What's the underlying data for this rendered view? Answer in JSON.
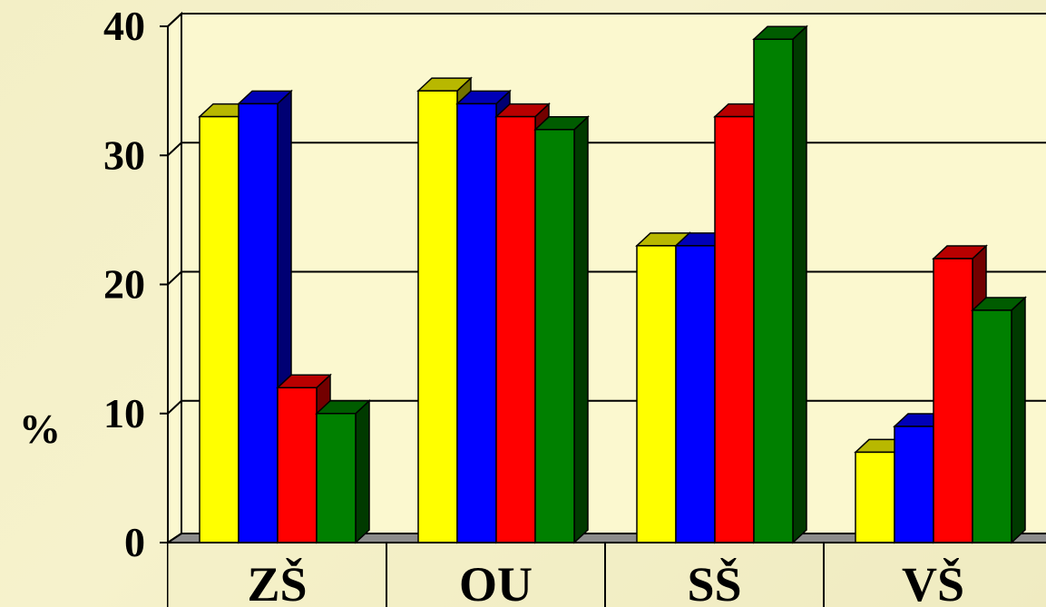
{
  "chart_data": {
    "type": "bar",
    "categories": [
      "ZŠ",
      "OU",
      "SŠ",
      "VŠ"
    ],
    "series": [
      {
        "values": [
          33,
          35,
          23,
          7
        ]
      },
      {
        "values": [
          34,
          34,
          23,
          9
        ]
      },
      {
        "values": [
          12,
          33,
          33,
          22
        ]
      },
      {
        "values": [
          10,
          32,
          39,
          18
        ]
      }
    ],
    "series_colors": [
      "#ffff00",
      "#0000ff",
      "#ff0000",
      "#008000"
    ],
    "ylabel": "%",
    "ylim": [
      0,
      40
    ],
    "yticks": [
      "0",
      "10",
      "20",
      "30",
      "40"
    ],
    "grid": true,
    "style": "3d-bar"
  }
}
